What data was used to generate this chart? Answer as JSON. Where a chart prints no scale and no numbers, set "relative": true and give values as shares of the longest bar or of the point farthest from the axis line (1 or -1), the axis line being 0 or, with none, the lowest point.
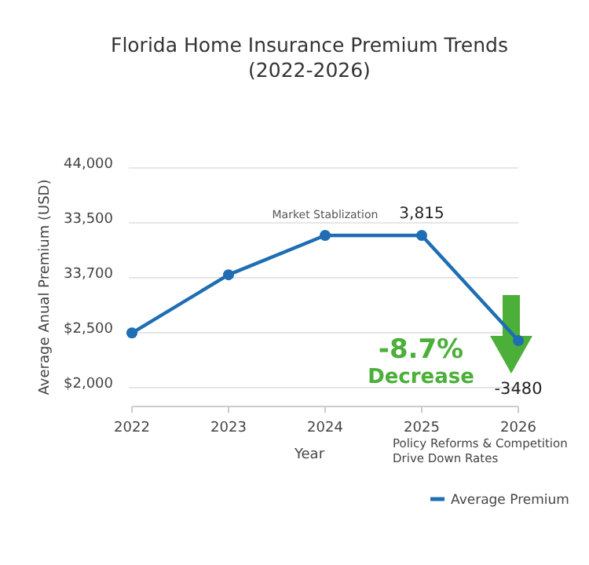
{
  "chart_data": {
    "type": "line",
    "title": "Florida Home Insurance Premium Trends",
    "subtitle": "(2022-2026)",
    "xlabel": "Year",
    "ylabel": "Average Anual Premium (USD)",
    "x": [
      2022,
      2023,
      2024,
      2025,
      2026
    ],
    "xlim": [
      2022,
      2026
    ],
    "xticks": [
      2022,
      2023,
      2024,
      2025,
      2026
    ],
    "relative": true,
    "series": [
      {
        "name": "Average Premium",
        "color": "#1f6db3",
        "values": [
          0.43,
          0.77,
          1,
          1,
          0.385
        ]
      }
    ],
    "annotations": [
      {
        "text": "Market Stablization",
        "x": 2024,
        "y": 1
      },
      {
        "text": "3,815",
        "x": 2025,
        "y": 1
      },
      "-8.7%",
      "Decrease",
      {
        "text": "-3480",
        "x": 2026,
        "y": 0.385
      },
      "Policy Reforms & Competition\nDrive Down Rates",
      "$2,000",
      "$2,500",
      "33,700",
      "33,500",
      "44,000"
    ],
    "legend": "bottom right",
    "marker": "circle",
    "line_style": "solid"
  }
}
